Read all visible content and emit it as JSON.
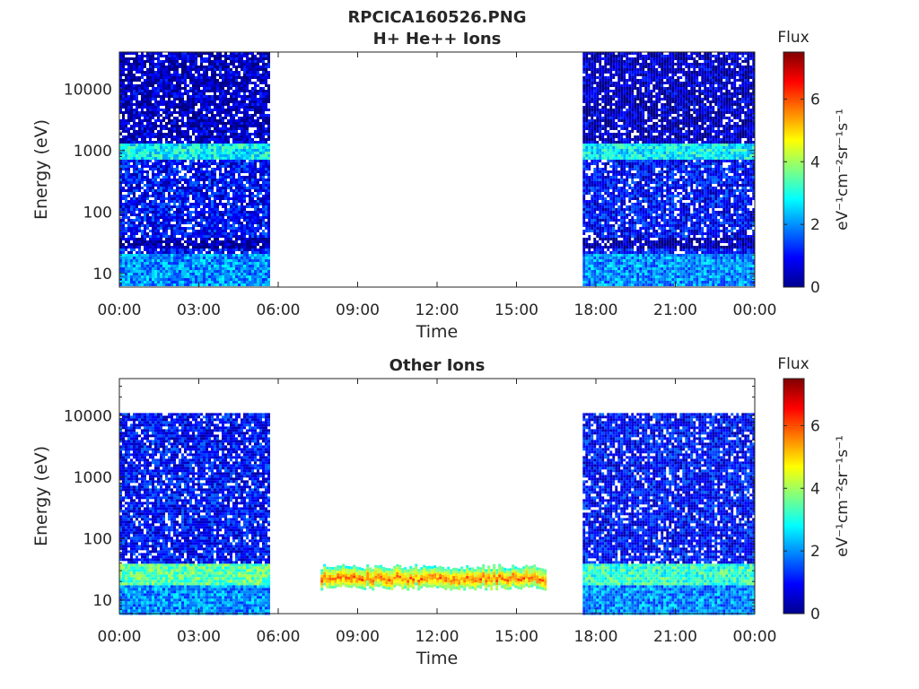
{
  "figure_title": "RPCICA160526.PNG",
  "chart_data": [
    {
      "type": "heatmap",
      "title": "H+ He++ Ions",
      "xlabel": "Time",
      "ylabel": "Energy (eV)",
      "x_ticks": [
        "00:00",
        "03:00",
        "06:00",
        "09:00",
        "12:00",
        "15:00",
        "18:00",
        "21:00",
        "00:00"
      ],
      "x_range_hours": [
        0,
        24
      ],
      "y_scale": "log",
      "y_ticks": [
        "10",
        "100",
        "1000",
        "10000"
      ],
      "y_tick_values": [
        10,
        100,
        1000,
        10000
      ],
      "y_range": [
        6,
        40000
      ],
      "colorbar": {
        "title": "Flux",
        "units": "eV⁻¹cm⁻²sr⁻¹s⁻¹",
        "ticks": [
          "0",
          "2",
          "4",
          "6"
        ],
        "range": [
          0,
          7.5
        ],
        "colormap": "jet"
      },
      "data_intervals_hours": [
        [
          0,
          5.67
        ],
        [
          17.5,
          24
        ]
      ],
      "features": [
        {
          "kind": "band",
          "energy_range": [
            700,
            1300
          ],
          "flux": 2.8
        },
        {
          "kind": "band",
          "energy_range": [
            25,
            40
          ],
          "flux": 0.3
        },
        {
          "kind": "band",
          "energy_range": [
            6,
            20
          ],
          "flux": 2.0
        },
        {
          "kind": "background",
          "energy_range": [
            20,
            700
          ],
          "flux": 1.0
        },
        {
          "kind": "background",
          "energy_range": [
            1300,
            40000
          ],
          "flux": 0.5
        }
      ]
    },
    {
      "type": "heatmap",
      "title": "Other Ions",
      "xlabel": "Time",
      "ylabel": "Energy (eV)",
      "x_ticks": [
        "00:00",
        "03:00",
        "06:00",
        "09:00",
        "12:00",
        "15:00",
        "18:00",
        "21:00",
        "00:00"
      ],
      "x_range_hours": [
        0,
        24
      ],
      "y_scale": "log",
      "y_ticks": [
        "10",
        "100",
        "1000",
        "10000"
      ],
      "y_tick_values": [
        10,
        100,
        1000,
        10000
      ],
      "y_range": [
        6,
        40000
      ],
      "colorbar": {
        "title": "Flux",
        "units": "eV⁻¹cm⁻²sr⁻¹s⁻¹",
        "ticks": [
          "0",
          "2",
          "4",
          "6"
        ],
        "range": [
          0,
          7.5
        ],
        "colormap": "jet"
      },
      "data_intervals_hours": [
        [
          0,
          5.67
        ],
        [
          17.5,
          24
        ]
      ],
      "features": [
        {
          "kind": "band",
          "energy_range": [
            18,
            40
          ],
          "flux": 3.5,
          "interval_hours": [
            0,
            5.67
          ]
        },
        {
          "kind": "band",
          "energy_range": [
            18,
            40
          ],
          "flux": 3.2,
          "interval_hours": [
            17.5,
            24
          ]
        },
        {
          "kind": "band",
          "energy_range": [
            16,
            35
          ],
          "flux": 5.8,
          "interval_hours": [
            7.6,
            16.1
          ]
        },
        {
          "kind": "background",
          "energy_range": [
            40,
            11000
          ],
          "flux": 1.0
        },
        {
          "kind": "background",
          "energy_range": [
            6,
            18
          ],
          "flux": 2.0
        }
      ]
    }
  ]
}
